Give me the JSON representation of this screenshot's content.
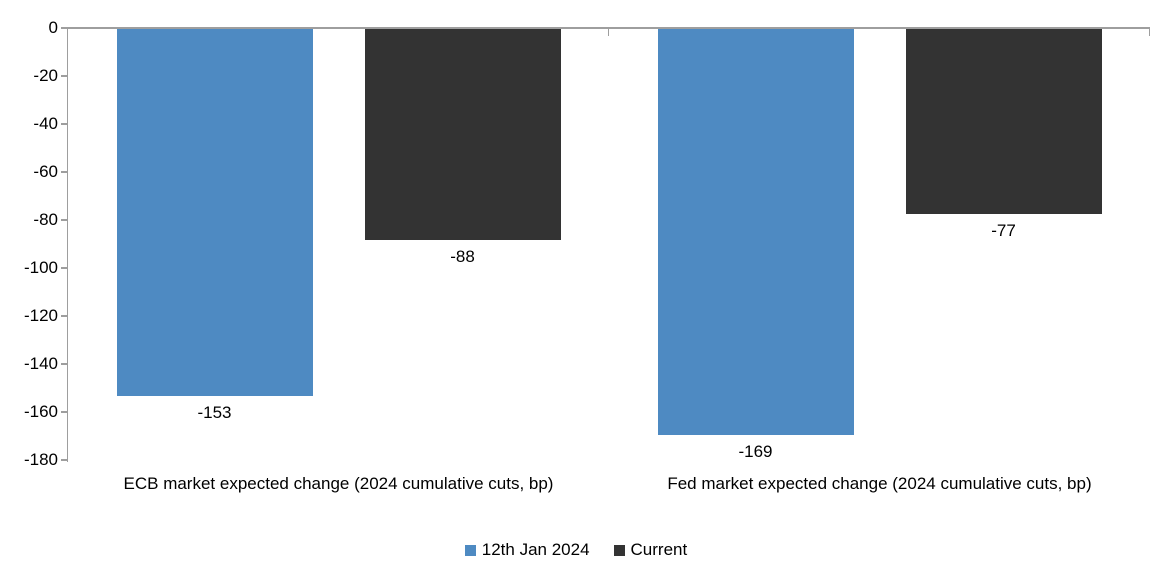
{
  "chart_data": {
    "type": "bar",
    "title": "",
    "categories": [
      "ECB market expected change (2024 cumulative cuts, bp)",
      "Fed market expected change (2024 cumulative cuts, bp)"
    ],
    "series": [
      {
        "name": "12th Jan 2024",
        "color": "#4E8AC2",
        "values": [
          -153,
          -169
        ]
      },
      {
        "name": "Current",
        "color": "#333333",
        "values": [
          -88,
          -77
        ]
      }
    ],
    "data_labels": [
      [
        "-153",
        "-169"
      ],
      [
        "-88",
        "-77"
      ]
    ],
    "ylim": [
      -180,
      0
    ],
    "yticks": [
      0,
      -20,
      -40,
      -60,
      -80,
      -100,
      -120,
      -140,
      -160,
      -180
    ],
    "ytick_labels": [
      "0",
      "-20",
      "-40",
      "-60",
      "-80",
      "-100",
      "-120",
      "-140",
      "-160",
      "-180"
    ],
    "xlabel": "",
    "ylabel": "",
    "grid": false,
    "legend_position": "bottom",
    "axis_color": "#9E9E9E",
    "text_color": "#000000"
  }
}
